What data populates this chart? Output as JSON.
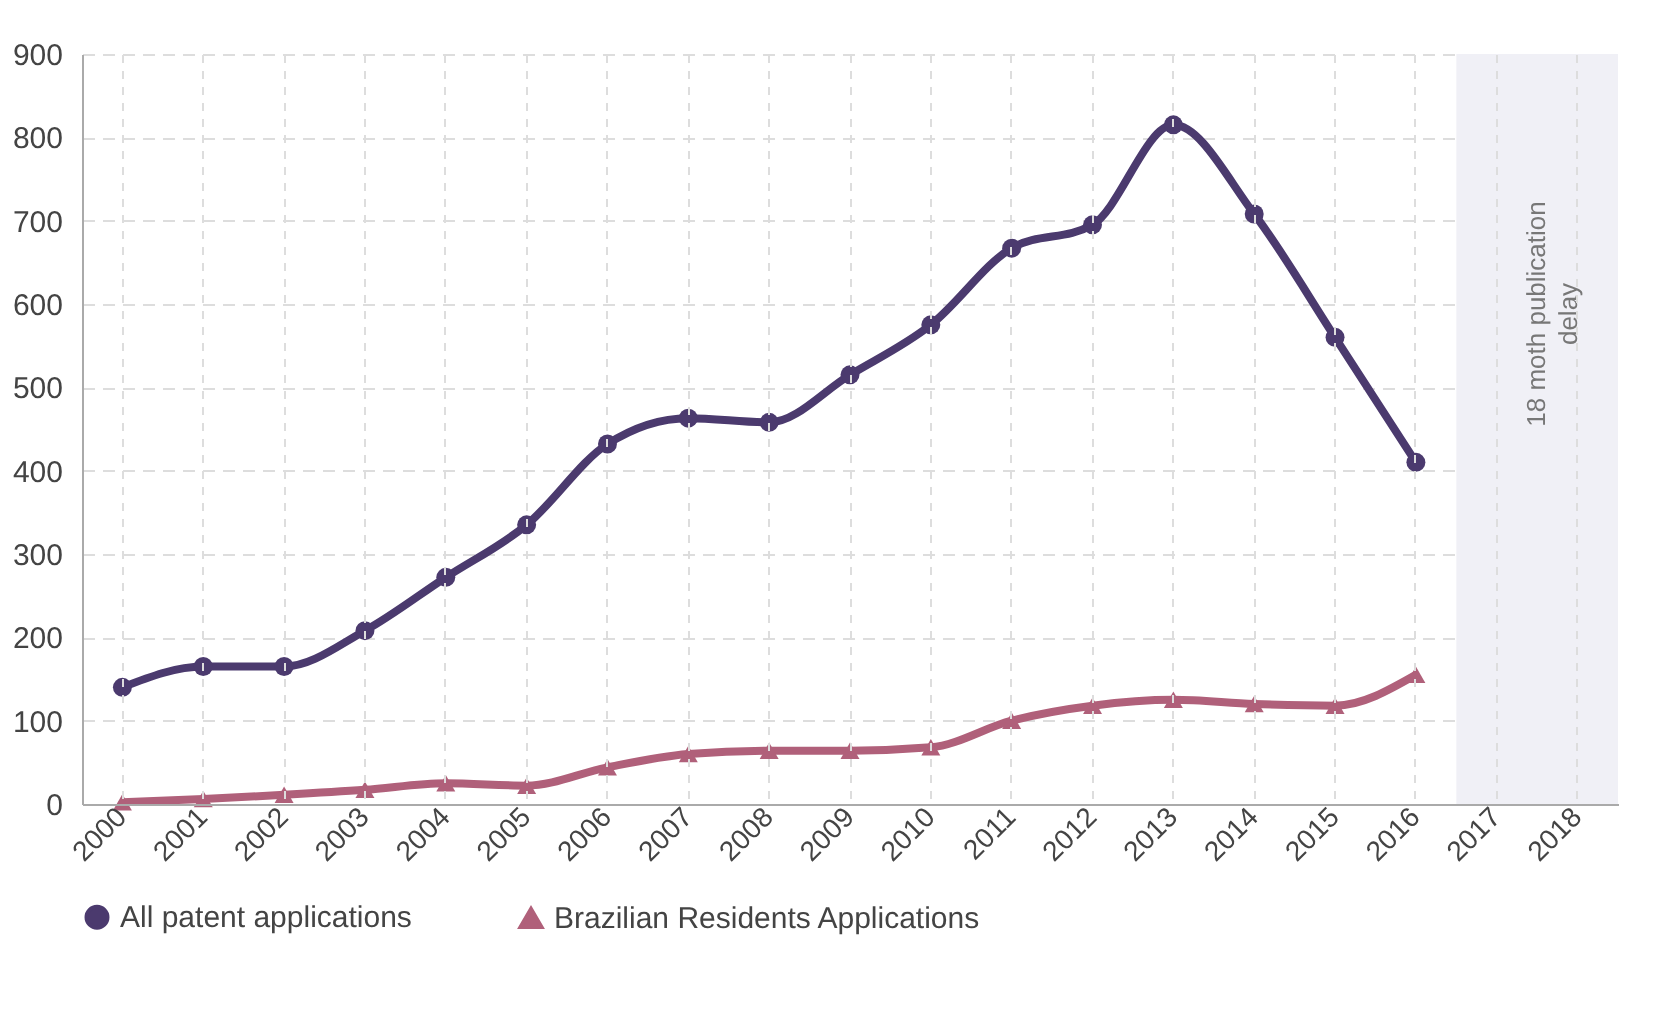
{
  "chart_data": {
    "type": "line",
    "categories": [
      "2000",
      "2001",
      "2002",
      "2003",
      "2004",
      "2005",
      "2006",
      "2007",
      "2008",
      "2009",
      "2010",
      "2011",
      "2012",
      "2013",
      "2014",
      "2015",
      "2016",
      "2017",
      "2018"
    ],
    "series": [
      {
        "name": "All patent applications",
        "color": "#4b3a6e",
        "marker": "circle",
        "values": [
          140,
          165,
          165,
          208,
          272,
          335,
          432,
          463,
          458,
          515,
          575,
          667,
          695,
          815,
          708,
          560,
          410,
          null,
          null
        ]
      },
      {
        "name": "Brazilian Residents Applications",
        "color": "#b0607a",
        "marker": "triangle",
        "values": [
          2,
          6,
          11,
          17,
          25,
          22,
          44,
          60,
          64,
          64,
          68,
          100,
          118,
          125,
          120,
          118,
          155,
          null,
          null
        ]
      }
    ],
    "ylim": [
      0,
      900
    ],
    "yticks": [
      0,
      100,
      200,
      300,
      400,
      500,
      600,
      700,
      800,
      900
    ],
    "grid": true,
    "legend": "bottom",
    "bands": [
      {
        "axis": "x",
        "from": "2017",
        "to": "2018",
        "label": "18 moth publication delay",
        "color": "#f0f0f6"
      }
    ]
  }
}
